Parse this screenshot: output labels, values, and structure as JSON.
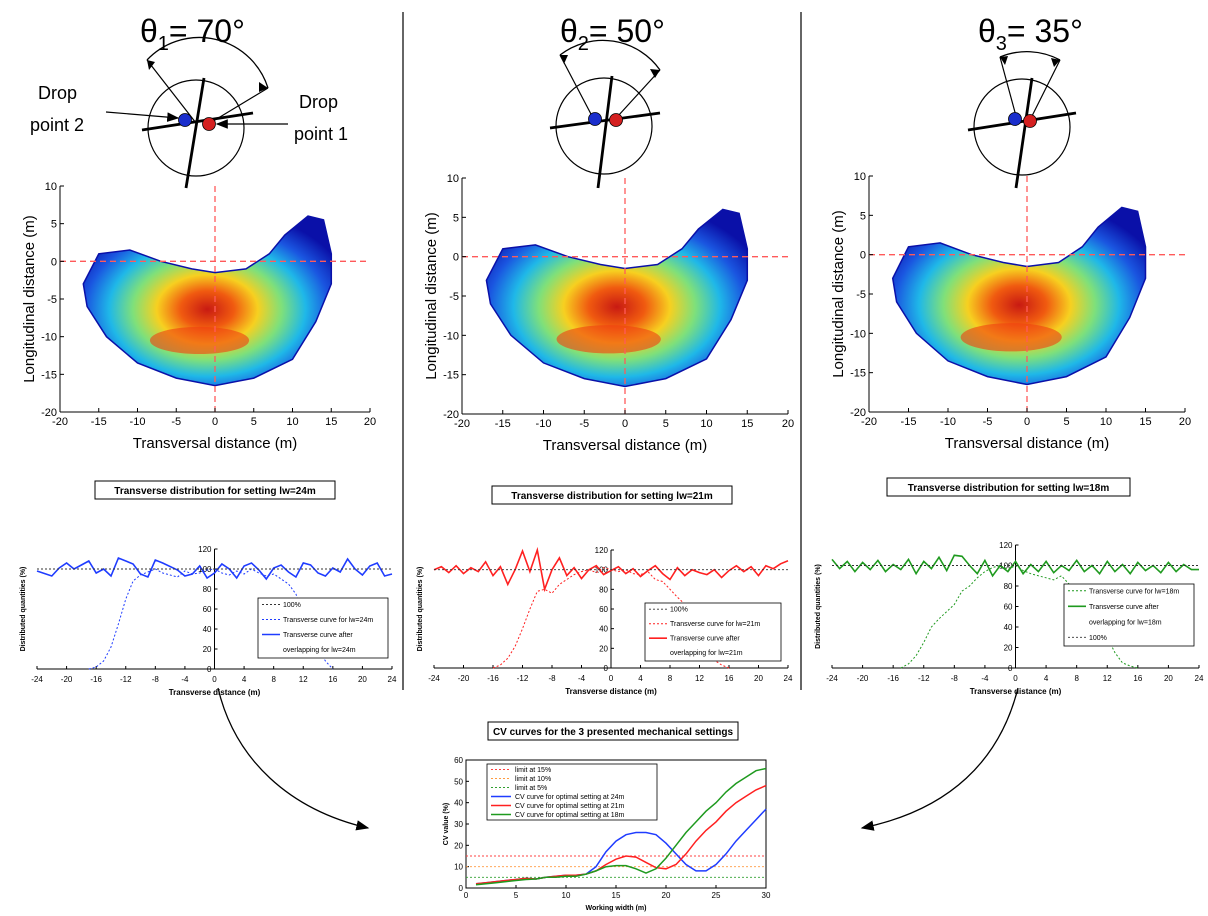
{
  "panels": [
    {
      "angle_sym": "θ",
      "angle_sub": "1",
      "angle_rest": "= 70°",
      "angle_deg": 70
    },
    {
      "angle_sym": "θ",
      "angle_sub": "2",
      "angle_rest": "= 50°",
      "angle_deg": 50
    },
    {
      "angle_sym": "θ",
      "angle_sub": "3",
      "angle_rest": "= 35°",
      "angle_deg": 35
    }
  ],
  "drop_labels": {
    "dp2_line1": "Drop",
    "dp2_line2": "point 2",
    "dp1_line1": "Drop",
    "dp1_line2": "point 1"
  },
  "heatmap": {
    "ylabel": "Longitudinal distance (m)",
    "xlabel": "Transversal distance (m)",
    "xticks": [
      "-20",
      "-15",
      "-10",
      "-5",
      "0",
      "5",
      "10",
      "15",
      "20"
    ],
    "yticks": [
      "10",
      "5",
      "0",
      "-5",
      "-10",
      "-15",
      "-20"
    ]
  },
  "colors": {
    "drop_point_1": "#d42020",
    "drop_point_2": "#1a2ecc",
    "guide_line": "#ff5a5a",
    "series_24": "#1f3cff",
    "series_21": "#ff2020",
    "series_18": "#1f9a1f"
  },
  "chart_data": [
    {
      "type": "line",
      "title": "Transverse distribution for setting lw=24m",
      "xlabel": "Transverse distance (m)",
      "ylabel": "Distributed quantities (%)",
      "xlim": [
        -24,
        24
      ],
      "ylim": [
        0,
        120
      ],
      "xticks": [
        "-24",
        "-20",
        "-16",
        "-12",
        "-8",
        "-4",
        "0",
        "4",
        "8",
        "12",
        "16",
        "20",
        "24"
      ],
      "yticks": [
        "0",
        "20",
        "40",
        "60",
        "80",
        "100",
        "120"
      ],
      "legend": [
        "100%",
        "Transverse curve for lw=24m",
        "Transverse curve after",
        "overlapping for lw=24m"
      ],
      "series": [
        {
          "name": "Transverse curve for lw=24m",
          "x": [
            -17,
            -16,
            -15,
            -14,
            -13,
            -12,
            -11,
            -10,
            -9,
            -8,
            -7,
            -6,
            -5,
            -4,
            -3,
            -2,
            -1,
            0,
            1,
            2,
            3,
            4,
            5,
            6,
            7,
            8,
            9,
            10,
            11,
            12,
            13,
            14,
            15,
            16
          ],
          "y": [
            0,
            2,
            8,
            22,
            45,
            70,
            88,
            94,
            97,
            100,
            96,
            94,
            92,
            98,
            95,
            96,
            99,
            100,
            96,
            94,
            98,
            95,
            100,
            96,
            93,
            95,
            90,
            85,
            75,
            55,
            35,
            20,
            8,
            0
          ]
        },
        {
          "name": "Transverse curve after overlapping for lw=24m",
          "x": [
            -24,
            -22,
            -21,
            -20,
            -19,
            -17,
            -16,
            -15,
            -14,
            -13,
            -11,
            -10,
            -9,
            -8,
            -7,
            -5,
            -4,
            -3,
            -2,
            -1,
            0,
            1,
            2,
            3,
            4,
            5,
            6,
            7,
            8,
            9,
            10,
            11,
            12,
            13,
            14,
            15,
            16,
            17,
            18,
            19,
            20,
            21,
            22,
            23,
            24
          ],
          "y": [
            98,
            93,
            101,
            106,
            100,
            108,
            96,
            100,
            93,
            111,
            105,
            95,
            92,
            109,
            106,
            99,
            93,
            95,
            103,
            91,
            96,
            105,
            100,
            91,
            103,
            106,
            99,
            90,
            101,
            104,
            97,
            92,
            106,
            104,
            96,
            93,
            101,
            97,
            110,
            100,
            94,
            103,
            106,
            93,
            95
          ]
        },
        {
          "name": "100%",
          "x": [
            -24,
            24
          ],
          "y": [
            100,
            100
          ]
        }
      ]
    },
    {
      "type": "line",
      "title": "Transverse distribution for setting lw=21m",
      "xlabel": "Transverse distance (m)",
      "ylabel": "Distributed quantities (%)",
      "xlim": [
        -24,
        24
      ],
      "ylim": [
        0,
        120
      ],
      "xticks": [
        "-24",
        "-20",
        "-16",
        "-12",
        "-8",
        "-4",
        "0",
        "4",
        "8",
        "12",
        "16",
        "20",
        "24"
      ],
      "yticks": [
        "0",
        "20",
        "40",
        "60",
        "80",
        "100",
        "120"
      ],
      "legend": [
        "100%",
        "Transverse curve for lw=21m",
        "Transverse curve after",
        "overlapping for lw=21m"
      ],
      "series": [
        {
          "name": "Transverse curve for lw=21m",
          "x": [
            -16,
            -15,
            -14,
            -13,
            -12,
            -11,
            -10,
            -9,
            -8,
            -7,
            -6,
            -5,
            -4,
            -3,
            -2,
            -1,
            0,
            1,
            2,
            3,
            4,
            5,
            6,
            7,
            8,
            9,
            10,
            11,
            12,
            13,
            14,
            15,
            16
          ],
          "y": [
            0,
            3,
            10,
            22,
            40,
            60,
            78,
            80,
            76,
            85,
            90,
            95,
            98,
            100,
            97,
            102,
            100,
            98,
            100,
            96,
            95,
            98,
            90,
            88,
            80,
            72,
            65,
            50,
            32,
            18,
            8,
            3,
            0
          ]
        },
        {
          "name": "Transverse curve after overlapping for lw=21m",
          "x": [
            -24,
            -23,
            -22,
            -21,
            -20,
            -19,
            -18,
            -17,
            -16,
            -15,
            -14,
            -13,
            -12,
            -11,
            -10,
            -9,
            -8,
            -7,
            -6,
            -5,
            -4,
            -3,
            -2,
            -1,
            0,
            1,
            2,
            3,
            4,
            5,
            6,
            7,
            8,
            9,
            10,
            11,
            12,
            13,
            14,
            15,
            16,
            17,
            18,
            19,
            20,
            21,
            22,
            23,
            24
          ],
          "y": [
            100,
            103,
            97,
            104,
            96,
            102,
            98,
            108,
            94,
            103,
            85,
            100,
            119,
            98,
            120,
            80,
            100,
            112,
            94,
            102,
            91,
            100,
            104,
            95,
            99,
            103,
            96,
            101,
            93,
            99,
            104,
            96,
            90,
            102,
            94,
            100,
            97,
            95,
            100,
            92,
            99,
            104,
            98,
            103,
            94,
            104,
            101,
            106,
            109
          ]
        },
        {
          "name": "100%",
          "x": [
            -24,
            24
          ],
          "y": [
            100,
            100
          ]
        }
      ]
    },
    {
      "type": "line",
      "title": "Transverse distribution for setting lw=18m",
      "xlabel": "Transverse distance (m)",
      "ylabel": "Distributed quantities (%)",
      "xlim": [
        -24,
        24
      ],
      "ylim": [
        0,
        120
      ],
      "xticks": [
        "-24",
        "-20",
        "-16",
        "-12",
        "-8",
        "-4",
        "0",
        "4",
        "8",
        "12",
        "16",
        "20",
        "24"
      ],
      "yticks": [
        "0",
        "20",
        "40",
        "60",
        "80",
        "100",
        "120"
      ],
      "legend": [
        "Transverse curve for lw=18m",
        "Transverse curve after",
        "overlapping for lw=18m",
        "100%"
      ],
      "series": [
        {
          "name": "Transverse curve for lw=18m",
          "x": [
            -15,
            -14,
            -13,
            -12,
            -11,
            -10,
            -9,
            -8,
            -7,
            -6,
            -5,
            -4,
            -3,
            -2,
            -1,
            0,
            1,
            2,
            3,
            4,
            5,
            6,
            7,
            8,
            9,
            10,
            11,
            12,
            13,
            14,
            15,
            16
          ],
          "y": [
            0,
            4,
            12,
            25,
            40,
            48,
            55,
            62,
            75,
            80,
            88,
            94,
            98,
            100,
            96,
            100,
            95,
            92,
            90,
            88,
            86,
            90,
            82,
            78,
            70,
            60,
            48,
            30,
            15,
            5,
            2,
            0
          ]
        },
        {
          "name": "Transverse curve after overlapping for lw=18m",
          "x": [
            -24,
            -23,
            -22,
            -21,
            -20,
            -19,
            -18,
            -17,
            -16,
            -15,
            -14,
            -13,
            -12,
            -11,
            -10,
            -9,
            -8,
            -7,
            -6,
            -5,
            -4,
            -3,
            -2,
            -1,
            0,
            1,
            2,
            3,
            4,
            5,
            6,
            7,
            8,
            9,
            10,
            11,
            12,
            13,
            14,
            15,
            16,
            17,
            18,
            19,
            20,
            21,
            22,
            23,
            24
          ],
          "y": [
            106,
            97,
            104,
            94,
            103,
            96,
            105,
            94,
            101,
            96,
            106,
            92,
            104,
            97,
            108,
            95,
            110,
            109,
            100,
            92,
            105,
            90,
            100,
            94,
            104,
            92,
            101,
            94,
            104,
            93,
            100,
            95,
            105,
            94,
            100,
            92,
            104,
            94,
            101,
            92,
            103,
            95,
            100,
            93,
            103,
            94,
            101,
            96,
            96
          ]
        },
        {
          "name": "100%",
          "x": [
            -24,
            24
          ],
          "y": [
            100,
            100
          ]
        }
      ]
    },
    {
      "type": "line",
      "title": "CV curves for the 3 presented mechanical settings",
      "xlabel": "Working width (m)",
      "ylabel": "CV value (%)",
      "xlim": [
        0,
        30
      ],
      "ylim": [
        0,
        60
      ],
      "xticks": [
        "0",
        "5",
        "10",
        "15",
        "20",
        "25",
        "30"
      ],
      "yticks": [
        "0",
        "10",
        "20",
        "30",
        "40",
        "50",
        "60"
      ],
      "legend": [
        "limit at 15%",
        "limit at 10%",
        "limit at 5%",
        "CV curve for optimal setting at 24m",
        "CV curve for optimal setting at 21m",
        "CV curve for optimal setting at 18m"
      ],
      "series": [
        {
          "name": "limit at 15%",
          "x": [
            0,
            30
          ],
          "y": [
            15,
            15
          ]
        },
        {
          "name": "limit at 10%",
          "x": [
            0,
            30
          ],
          "y": [
            10,
            10
          ]
        },
        {
          "name": "limit at 5%",
          "x": [
            0,
            30
          ],
          "y": [
            5,
            5
          ]
        },
        {
          "name": "CV curve for optimal setting at 24m",
          "x": [
            1,
            2,
            3,
            4,
            5,
            6,
            7,
            8,
            9,
            10,
            11,
            12,
            13,
            14,
            15,
            16,
            17,
            18,
            19,
            20,
            21,
            22,
            23,
            24,
            25,
            26,
            27,
            28,
            29,
            30
          ],
          "y": [
            2,
            2.5,
            3,
            3.5,
            4,
            4.5,
            4.2,
            5,
            5.5,
            6,
            6,
            6.5,
            10,
            17,
            22,
            25,
            26,
            26,
            25,
            21,
            16,
            11,
            8,
            8,
            11,
            16,
            22,
            27,
            32,
            37
          ]
        },
        {
          "name": "CV curve for optimal setting at 21m",
          "x": [
            1,
            2,
            3,
            4,
            5,
            6,
            7,
            8,
            9,
            10,
            11,
            12,
            13,
            14,
            15,
            16,
            17,
            18,
            19,
            20,
            21,
            22,
            23,
            24,
            25,
            26,
            27,
            28,
            29,
            30
          ],
          "y": [
            2,
            2.5,
            3,
            3.5,
            4,
            4.5,
            4.2,
            5,
            5.5,
            6,
            6,
            6.5,
            8,
            11,
            13.5,
            15,
            14.5,
            12,
            9.5,
            9,
            11,
            16,
            22,
            27,
            31,
            36,
            40,
            43,
            46,
            48
          ]
        },
        {
          "name": "CV curve for optimal setting at 18m",
          "x": [
            1,
            2,
            3,
            4,
            5,
            6,
            7,
            8,
            9,
            10,
            11,
            12,
            13,
            14,
            15,
            16,
            17,
            18,
            19,
            20,
            21,
            22,
            23,
            24,
            25,
            26,
            27,
            28,
            29,
            30
          ],
          "y": [
            1.5,
            2,
            2.5,
            3,
            3.5,
            4,
            4.2,
            5,
            5,
            5.5,
            5.5,
            6.5,
            8,
            10,
            10.5,
            10.5,
            9,
            7,
            9,
            14,
            20,
            26,
            31,
            36,
            40,
            45,
            49,
            52,
            55,
            56
          ]
        }
      ]
    }
  ]
}
